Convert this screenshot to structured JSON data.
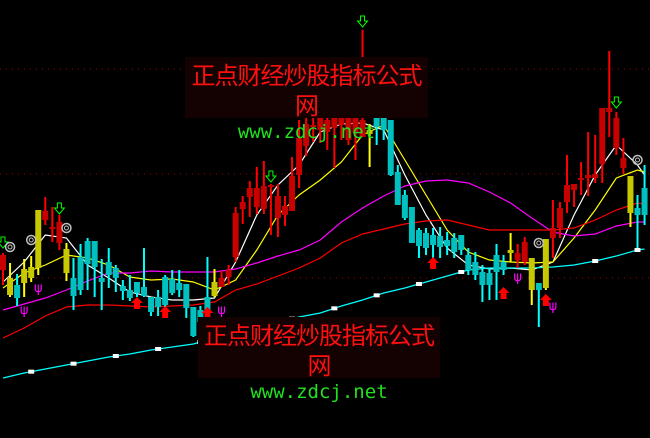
{
  "watermark": {
    "title": "正点财经炒股指标公式网",
    "url": "www.zdcj.net"
  },
  "colors": {
    "background": "#000000",
    "up": "#ff0000",
    "up_body": "#c80000",
    "down": "#00ffff",
    "down_body": "#00c0c0",
    "neutral": "#ffff00",
    "neutral_body": "#c8c800",
    "grid": "#a00000"
  },
  "chart_data": {
    "type": "candlestick",
    "title": "",
    "xlabel": "",
    "ylabel": "",
    "ylim": [
      0,
      43.8
    ],
    "grid": "dotted horizontal",
    "gridlines": [
      36.9,
      26.4,
      16.0
    ],
    "candles": [
      {
        "o": 16.8,
        "h": 18.5,
        "l": 15.3,
        "c": 18.3,
        "color": "red"
      },
      {
        "o": 14.3,
        "h": 17.5,
        "l": 14.1,
        "c": 16.0,
        "color": "yellow"
      },
      {
        "o": 15.3,
        "h": 16.4,
        "l": 13.2,
        "c": 14.0,
        "color": "cyan"
      },
      {
        "o": 15.5,
        "h": 17.9,
        "l": 14.1,
        "c": 16.9,
        "color": "yellow"
      },
      {
        "o": 16.0,
        "h": 18.2,
        "l": 15.6,
        "c": 17.1,
        "color": "yellow"
      },
      {
        "o": 17.0,
        "h": 22.8,
        "l": 16.3,
        "c": 22.8,
        "color": "yellow"
      },
      {
        "o": 21.8,
        "h": 24.1,
        "l": 21.3,
        "c": 22.7,
        "color": "red"
      },
      {
        "o": 21.0,
        "h": 23.1,
        "l": 19.6,
        "c": 21.1,
        "color": "red"
      },
      {
        "o": 19.5,
        "h": 22.3,
        "l": 18.8,
        "c": 21.6,
        "color": "red"
      },
      {
        "o": 16.5,
        "h": 19.5,
        "l": 15.7,
        "c": 18.9,
        "color": "yellow"
      },
      {
        "o": 16.0,
        "h": 18.0,
        "l": 12.8,
        "c": 14.2,
        "color": "cyan"
      },
      {
        "o": 18.1,
        "h": 19.4,
        "l": 14.3,
        "c": 14.8,
        "color": "cyan"
      },
      {
        "o": 19.7,
        "h": 20.0,
        "l": 14.8,
        "c": 17.4,
        "color": "cyan"
      },
      {
        "o": 19.7,
        "h": 19.7,
        "l": 14.1,
        "c": 17.1,
        "color": "cyan"
      },
      {
        "o": 16.0,
        "h": 17.9,
        "l": 12.8,
        "c": 15.6,
        "color": "cyan"
      },
      {
        "o": 17.6,
        "h": 19.0,
        "l": 15.0,
        "c": 16.3,
        "color": "cyan"
      },
      {
        "o": 17.0,
        "h": 17.3,
        "l": 14.6,
        "c": 16.0,
        "color": "cyan"
      },
      {
        "o": 15.2,
        "h": 15.8,
        "l": 13.8,
        "c": 14.7,
        "color": "cyan"
      },
      {
        "o": 14.8,
        "h": 16.3,
        "l": 13.7,
        "c": 14.0,
        "color": "cyan"
      },
      {
        "o": 15.6,
        "h": 15.6,
        "l": 14.1,
        "c": 14.5,
        "color": "cyan"
      },
      {
        "o": 15.1,
        "h": 19.0,
        "l": 14.1,
        "c": 14.2,
        "color": "cyan"
      },
      {
        "o": 14.1,
        "h": 14.1,
        "l": 12.2,
        "c": 12.6,
        "color": "cyan"
      },
      {
        "o": 14.1,
        "h": 14.8,
        "l": 12.2,
        "c": 13.1,
        "color": "cyan"
      },
      {
        "o": 16.1,
        "h": 16.3,
        "l": 13.1,
        "c": 13.3,
        "color": "cyan"
      },
      {
        "o": 15.9,
        "h": 16.8,
        "l": 14.3,
        "c": 14.5,
        "color": "cyan"
      },
      {
        "o": 15.5,
        "h": 16.8,
        "l": 14.1,
        "c": 14.8,
        "color": "cyan"
      },
      {
        "o": 15.4,
        "h": 15.4,
        "l": 12.0,
        "c": 13.0,
        "color": "cyan"
      },
      {
        "o": 13.1,
        "h": 13.1,
        "l": 10.1,
        "c": 10.2,
        "color": "cyan"
      },
      {
        "o": 12.8,
        "h": 13.2,
        "l": 10.4,
        "c": 11.6,
        "color": "cyan"
      },
      {
        "o": 14.1,
        "h": 18.1,
        "l": 12.3,
        "c": 12.8,
        "color": "cyan"
      },
      {
        "o": 14.2,
        "h": 16.9,
        "l": 14.1,
        "c": 15.6,
        "color": "yellow"
      },
      {
        "o": 15.1,
        "h": 16.7,
        "l": 15.1,
        "c": 16.0,
        "color": "red"
      },
      {
        "o": 16.1,
        "h": 17.3,
        "l": 15.3,
        "c": 16.8,
        "color": "red"
      },
      {
        "o": 18.1,
        "h": 23.1,
        "l": 17.6,
        "c": 22.5,
        "color": "red"
      },
      {
        "o": 22.9,
        "h": 24.2,
        "l": 21.4,
        "c": 23.6,
        "color": "red"
      },
      {
        "o": 24.1,
        "h": 25.7,
        "l": 22.1,
        "c": 25.0,
        "color": "red"
      },
      {
        "o": 23.1,
        "h": 27.1,
        "l": 22.4,
        "c": 25.0,
        "color": "red"
      },
      {
        "o": 22.9,
        "h": 27.7,
        "l": 22.4,
        "c": 25.2,
        "color": "red"
      },
      {
        "o": 25.2,
        "h": 25.4,
        "l": 20.3,
        "c": 25.3,
        "color": "red"
      },
      {
        "o": 22.0,
        "h": 25.4,
        "l": 20.1,
        "c": 24.2,
        "color": "red"
      },
      {
        "o": 22.3,
        "h": 24.2,
        "l": 21.2,
        "c": 23.2,
        "color": "red"
      },
      {
        "o": 22.7,
        "h": 28.1,
        "l": 22.7,
        "c": 26.2,
        "color": "red"
      },
      {
        "o": 26.3,
        "h": 31.8,
        "l": 25.0,
        "c": 30.0,
        "color": "red"
      },
      {
        "o": 29.2,
        "h": 32.0,
        "l": 28.2,
        "c": 31.4,
        "color": "red"
      },
      {
        "o": 31.1,
        "h": 32.0,
        "l": 29.6,
        "c": 31.3,
        "color": "red"
      },
      {
        "o": 30.8,
        "h": 32.8,
        "l": 29.5,
        "c": 32.0,
        "color": "red"
      },
      {
        "o": 30.6,
        "h": 32.8,
        "l": 28.8,
        "c": 31.8,
        "color": "red"
      },
      {
        "o": 31.0,
        "h": 33.0,
        "l": 27.0,
        "c": 32.0,
        "color": "red"
      },
      {
        "o": 31.3,
        "h": 33.3,
        "l": 29.8,
        "c": 32.3,
        "color": "red"
      },
      {
        "o": 29.8,
        "h": 32.8,
        "l": 29.3,
        "c": 32.0,
        "color": "red"
      },
      {
        "o": 30.5,
        "h": 33.8,
        "l": 27.8,
        "c": 32.3,
        "color": "red"
      },
      {
        "o": 30.1,
        "h": 40.8,
        "l": 30.1,
        "c": 31.8,
        "color": "red"
      },
      {
        "o": 30.4,
        "h": 31.4,
        "l": 27.1,
        "c": 30.8,
        "color": "yellow"
      },
      {
        "o": 32.0,
        "h": 32.3,
        "l": 29.3,
        "c": 31.1,
        "color": "cyan"
      },
      {
        "o": 32.0,
        "h": 32.3,
        "l": 29.8,
        "c": 30.8,
        "color": "cyan"
      },
      {
        "o": 31.8,
        "h": 31.8,
        "l": 26.2,
        "c": 26.3,
        "color": "cyan"
      },
      {
        "o": 26.6,
        "h": 27.3,
        "l": 23.3,
        "c": 23.3,
        "color": "cyan"
      },
      {
        "o": 24.3,
        "h": 24.8,
        "l": 21.8,
        "c": 22.0,
        "color": "cyan"
      },
      {
        "o": 23.1,
        "h": 23.1,
        "l": 19.5,
        "c": 19.5,
        "color": "cyan"
      },
      {
        "o": 20.8,
        "h": 21.0,
        "l": 18.0,
        "c": 19.2,
        "color": "cyan"
      },
      {
        "o": 20.5,
        "h": 21.0,
        "l": 18.3,
        "c": 19.0,
        "color": "cyan"
      },
      {
        "o": 20.3,
        "h": 21.0,
        "l": 17.6,
        "c": 19.3,
        "color": "cyan"
      },
      {
        "o": 20.2,
        "h": 21.1,
        "l": 18.0,
        "c": 19.1,
        "color": "cyan"
      },
      {
        "o": 19.8,
        "h": 20.6,
        "l": 18.3,
        "c": 19.2,
        "color": "cyan"
      },
      {
        "o": 20.0,
        "h": 20.5,
        "l": 18.0,
        "c": 18.6,
        "color": "cyan"
      },
      {
        "o": 20.3,
        "h": 20.3,
        "l": 18.3,
        "c": 18.8,
        "color": "cyan"
      },
      {
        "o": 18.3,
        "h": 19.0,
        "l": 16.3,
        "c": 16.8,
        "color": "cyan"
      },
      {
        "o": 17.6,
        "h": 18.6,
        "l": 15.8,
        "c": 16.3,
        "color": "cyan"
      },
      {
        "o": 16.6,
        "h": 17.3,
        "l": 13.6,
        "c": 15.3,
        "color": "cyan"
      },
      {
        "o": 16.5,
        "h": 17.0,
        "l": 13.8,
        "c": 15.3,
        "color": "cyan"
      },
      {
        "o": 18.3,
        "h": 19.4,
        "l": 13.8,
        "c": 16.6,
        "color": "cyan"
      },
      {
        "o": 17.6,
        "h": 18.3,
        "l": 16.3,
        "c": 16.8,
        "color": "cyan"
      },
      {
        "o": 18.5,
        "h": 20.5,
        "l": 17.6,
        "c": 18.8,
        "color": "yellow"
      },
      {
        "o": 17.8,
        "h": 19.4,
        "l": 17.0,
        "c": 18.5,
        "color": "red"
      },
      {
        "o": 17.6,
        "h": 20.1,
        "l": 17.3,
        "c": 19.6,
        "color": "red"
      },
      {
        "o": 14.8,
        "h": 18.0,
        "l": 13.3,
        "c": 18.0,
        "color": "yellow"
      },
      {
        "o": 15.5,
        "h": 15.5,
        "l": 11.1,
        "c": 14.8,
        "color": "cyan"
      },
      {
        "o": 15.0,
        "h": 19.9,
        "l": 14.8,
        "c": 19.9,
        "color": "yellow"
      },
      {
        "o": 20.0,
        "h": 23.8,
        "l": 18.0,
        "c": 21.0,
        "color": "red"
      },
      {
        "o": 21.0,
        "h": 23.6,
        "l": 20.0,
        "c": 23.0,
        "color": "red"
      },
      {
        "o": 23.6,
        "h": 28.3,
        "l": 22.5,
        "c": 25.3,
        "color": "red"
      },
      {
        "o": 24.8,
        "h": 25.4,
        "l": 23.1,
        "c": 25.4,
        "color": "red"
      },
      {
        "o": 25.9,
        "h": 27.6,
        "l": 24.3,
        "c": 26.0,
        "color": "red"
      },
      {
        "o": 26.0,
        "h": 30.6,
        "l": 24.2,
        "c": 26.3,
        "color": "red"
      },
      {
        "o": 26.0,
        "h": 30.3,
        "l": 25.5,
        "c": 26.4,
        "color": "red"
      },
      {
        "o": 27.4,
        "h": 33.0,
        "l": 25.5,
        "c": 33.0,
        "color": "red"
      },
      {
        "o": 32.6,
        "h": 38.7,
        "l": 30.1,
        "c": 33.0,
        "color": "red"
      },
      {
        "o": 29.0,
        "h": 32.6,
        "l": 28.3,
        "c": 32.0,
        "color": "red"
      },
      {
        "o": 27.0,
        "h": 30.0,
        "l": 26.4,
        "c": 28.0,
        "color": "red"
      },
      {
        "o": 22.5,
        "h": 26.2,
        "l": 21.1,
        "c": 26.2,
        "color": "yellow"
      },
      {
        "o": 23.0,
        "h": 24.3,
        "l": 18.8,
        "c": 22.3,
        "color": "cyan"
      },
      {
        "o": 25.0,
        "h": 27.3,
        "l": 21.3,
        "c": 22.3,
        "color": "cyan"
      }
    ],
    "lines": [
      {
        "color": "#ffffff",
        "values": [
          15.6,
          17.6,
          20.3,
          20.0,
          17.3,
          16.0,
          14.6,
          14.1,
          13.8,
          13.8,
          14.0,
          17.6,
          22.3,
          25.3,
          27.3,
          30.6,
          31.4,
          31.5,
          30.8,
          26.3,
          22.3,
          19.0,
          17.3,
          16.9,
          17.0,
          16.8,
          17.6,
          22.3,
          26.3,
          29.3,
          27.3,
          26.3
        ]
      },
      {
        "color": "#ffff00",
        "values": [
          15.0,
          16.5,
          17.3,
          18.3,
          18.0,
          17.3,
          16.1,
          15.8,
          15.9,
          15.6,
          14.8,
          15.8,
          18.8,
          22.3,
          24.3,
          25.8,
          27.6,
          30.3,
          31.3,
          27.8,
          24.3,
          20.8,
          18.6,
          17.8,
          17.6,
          17.5,
          17.6,
          20.0,
          22.8,
          26.0,
          26.8,
          26.6
        ]
      },
      {
        "color": "#ff00ff",
        "values": [
          12.8,
          13.4,
          14.0,
          14.8,
          15.7,
          16.5,
          16.5,
          16.7,
          16.6,
          16.6,
          16.6,
          16.9,
          17.5,
          18.2,
          18.8,
          19.8,
          21.6,
          23.0,
          24.2,
          25.2,
          25.7,
          25.8,
          25.5,
          24.6,
          23.5,
          22.0,
          20.6,
          20.2,
          20.4,
          21.2,
          21.6,
          21.6
        ]
      },
      {
        "color": "#ff0000",
        "values": [
          10.0,
          11.0,
          12.2,
          13.1,
          13.3,
          13.3,
          13.2,
          13.1,
          13.2,
          13.3,
          13.6,
          14.8,
          15.4,
          16.2,
          17.0,
          18.0,
          19.5,
          20.4,
          20.9,
          21.4,
          21.7,
          21.8,
          21.3,
          20.8,
          20.8,
          20.8,
          20.8,
          21.0,
          21.8,
          22.8,
          23.5,
          23.4
        ]
      },
      {
        "color": "#00ffff",
        "values": [
          6.0,
          6.5,
          6.9,
          7.3,
          7.7,
          8.1,
          8.4,
          8.8,
          9.1,
          9.4,
          10.0,
          10.5,
          11.0,
          11.6,
          12.1,
          12.5,
          13.2,
          13.8,
          14.5,
          15.0,
          15.6,
          16.2,
          16.8,
          17.0,
          17.0,
          17.0,
          17.1,
          17.3,
          17.7,
          18.2,
          18.8,
          18.9
        ],
        "markers": [
          4,
          10,
          16,
          22,
          28,
          34,
          41,
          47,
          53,
          59,
          65,
          84,
          90
        ]
      }
    ],
    "signals": [
      {
        "type": "down-arrow",
        "index": 0,
        "price": 19.5
      },
      {
        "type": "down-arrow",
        "index": 8,
        "price": 22.9
      },
      {
        "type": "down-arrow",
        "index": 38,
        "price": 26.1
      },
      {
        "type": "down-arrow",
        "index": 51,
        "price": 41.6
      },
      {
        "type": "down-arrow",
        "index": 87,
        "price": 33.5
      },
      {
        "type": "up-arrow",
        "index": 19,
        "price": 13.5
      },
      {
        "type": "up-arrow",
        "index": 23,
        "price": 12.6
      },
      {
        "type": "up-arrow",
        "index": 29,
        "price": 12.5
      },
      {
        "type": "up-arrow",
        "index": 61,
        "price": 17.5
      },
      {
        "type": "up-arrow",
        "index": 71,
        "price": 14.5
      },
      {
        "type": "up-arrow",
        "index": 77,
        "price": 13.8
      },
      {
        "type": "circle",
        "index": 1,
        "price": 19.1
      },
      {
        "type": "circle",
        "index": 4,
        "price": 19.8
      },
      {
        "type": "circle",
        "index": 9,
        "price": 21.0
      },
      {
        "type": "circle",
        "index": 76,
        "price": 19.5
      },
      {
        "type": "circle",
        "index": 90,
        "price": 27.8
      },
      {
        "type": "psi",
        "index": 3,
        "price": 12.9
      },
      {
        "type": "psi",
        "index": 5,
        "price": 15.1
      },
      {
        "type": "psi",
        "index": 31,
        "price": 12.9
      },
      {
        "type": "psi",
        "index": 73,
        "price": 16.2
      },
      {
        "type": "psi",
        "index": 78,
        "price": 13.3
      }
    ]
  }
}
